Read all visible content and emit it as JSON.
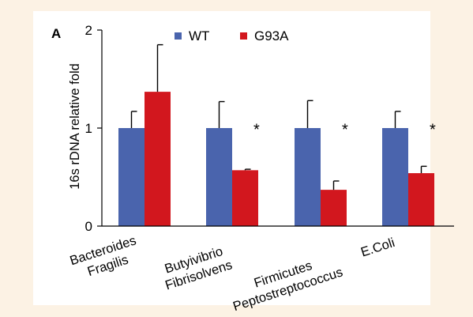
{
  "panel_label": "A",
  "colors": {
    "wt": "#4a64ad",
    "g93a": "#d2171e",
    "error": "#000000"
  },
  "chart_data": {
    "type": "bar",
    "title": "",
    "ylabel": "16s rDNA  relative fold",
    "xlabel": "",
    "ylim": [
      0,
      2
    ],
    "yticks": [
      "0",
      "1",
      "2"
    ],
    "legend_position": "top",
    "categories": [
      [
        "Bacteroides",
        "Fragilis"
      ],
      [
        "Butyivibrio",
        "Fibrisolvens"
      ],
      [
        "Firmicutes",
        "Peptostreptococcus"
      ],
      [
        "E.Coli"
      ]
    ],
    "series": [
      {
        "name": "WT",
        "values": [
          1.0,
          1.0,
          1.0,
          1.0
        ],
        "errors": [
          0.17,
          0.27,
          0.28,
          0.17
        ]
      },
      {
        "name": "G93A",
        "values": [
          1.37,
          0.57,
          0.37,
          0.54
        ],
        "errors": [
          0.48,
          0.01,
          0.09,
          0.07
        ]
      }
    ],
    "annotations": [
      "",
      "*",
      "*",
      "*"
    ]
  }
}
